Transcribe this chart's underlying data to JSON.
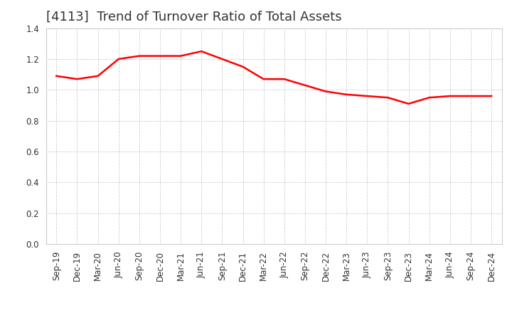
{
  "title": "[4113]  Trend of Turnover Ratio of Total Assets",
  "x_labels": [
    "Sep-19",
    "Dec-19",
    "Mar-20",
    "Jun-20",
    "Sep-20",
    "Dec-20",
    "Mar-21",
    "Jun-21",
    "Sep-21",
    "Dec-21",
    "Mar-22",
    "Jun-22",
    "Sep-22",
    "Dec-22",
    "Mar-23",
    "Jun-23",
    "Sep-23",
    "Dec-23",
    "Mar-24",
    "Jun-24",
    "Sep-24",
    "Dec-24"
  ],
  "y_values": [
    1.09,
    1.07,
    1.09,
    1.2,
    1.22,
    1.22,
    1.22,
    1.25,
    1.2,
    1.15,
    1.07,
    1.07,
    1.03,
    0.99,
    0.97,
    0.96,
    0.95,
    0.91,
    0.95,
    0.96,
    0.96,
    0.96
  ],
  "line_color": "#FF0000",
  "line_width": 1.8,
  "ylim": [
    0.0,
    1.4
  ],
  "yticks": [
    0.0,
    0.2,
    0.4,
    0.6,
    0.8,
    1.0,
    1.2,
    1.4
  ],
  "background_color": "#ffffff",
  "grid_color": "#999999",
  "title_fontsize": 13,
  "title_color": "#333333",
  "tick_fontsize": 8.5,
  "tick_color": "#333333"
}
